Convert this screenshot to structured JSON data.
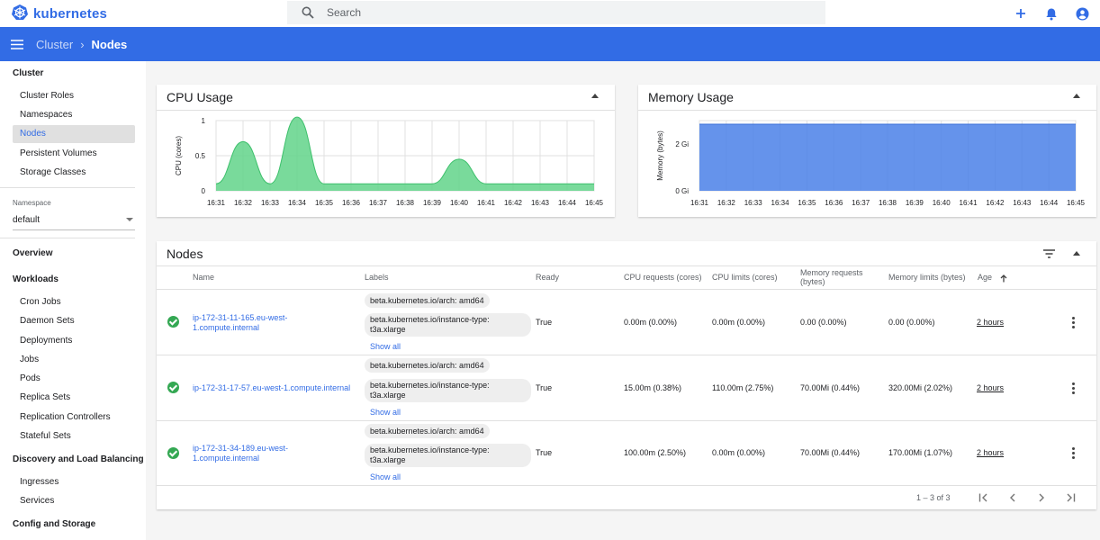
{
  "app": {
    "logo_text": "kubernetes"
  },
  "search": {
    "placeholder": "Search"
  },
  "breadcrumb": {
    "parent": "Cluster",
    "current": "Nodes"
  },
  "sidebar": {
    "cluster_heading": "Cluster",
    "cluster_items": [
      "Cluster Roles",
      "Namespaces",
      "Nodes",
      "Persistent Volumes",
      "Storage Classes"
    ],
    "namespace_label": "Namespace",
    "namespace_value": "default",
    "overview": "Overview",
    "workloads_heading": "Workloads",
    "workload_items": [
      "Cron Jobs",
      "Daemon Sets",
      "Deployments",
      "Jobs",
      "Pods",
      "Replica Sets",
      "Replication Controllers",
      "Stateful Sets"
    ],
    "discovery_heading": "Discovery and Load Balancing",
    "discovery_items": [
      "Ingresses",
      "Services"
    ],
    "config_heading": "Config and Storage"
  },
  "cpu_card": {
    "title": "CPU Usage"
  },
  "memory_card": {
    "title": "Memory Usage"
  },
  "chart_data": [
    {
      "type": "area",
      "title": "CPU Usage",
      "ylabel": "CPU (cores)",
      "ylim": [
        0,
        1
      ],
      "yticks": [
        "0",
        "0.5",
        "1"
      ],
      "x": [
        "16:31",
        "16:32",
        "16:33",
        "16:34",
        "16:35",
        "16:36",
        "16:37",
        "16:38",
        "16:39",
        "16:40",
        "16:41",
        "16:42",
        "16:43",
        "16:44",
        "16:45"
      ],
      "values": [
        0.1,
        0.7,
        0.1,
        1.05,
        0.1,
        0.1,
        0.1,
        0.1,
        0.1,
        0.45,
        0.1,
        0.1,
        0.1,
        0.1,
        0.1
      ],
      "color": "#62d48a"
    },
    {
      "type": "area",
      "title": "Memory Usage",
      "ylabel": "Memory (bytes)",
      "ylim": [
        0,
        3
      ],
      "yticks": [
        "0 Gi",
        "2 Gi"
      ],
      "x": [
        "16:31",
        "16:32",
        "16:33",
        "16:34",
        "16:35",
        "16:36",
        "16:37",
        "16:38",
        "16:39",
        "16:40",
        "16:41",
        "16:42",
        "16:43",
        "16:44",
        "16:45"
      ],
      "values": [
        3.05,
        3.05,
        3.05,
        3.07,
        3.06,
        3.06,
        3.06,
        3.06,
        3.06,
        3.06,
        3.06,
        3.06,
        3.06,
        3.06,
        3.07
      ],
      "color": "#4a80e8"
    }
  ],
  "nodes_card": {
    "title": "Nodes",
    "columns": [
      "Name",
      "Labels",
      "Ready",
      "CPU requests (cores)",
      "CPU limits (cores)",
      "Memory requests (bytes)",
      "Memory limits (bytes)",
      "Age"
    ],
    "show_all_label": "Show all",
    "rows": [
      {
        "name": "ip-172-31-11-165.eu-west-1.compute.internal",
        "label_arch": "beta.kubernetes.io/arch: amd64",
        "label_instance": "beta.kubernetes.io/instance-type: t3a.xlarge",
        "ready": "True",
        "cpu_requests": "0.00m (0.00%)",
        "cpu_limits": "0.00m (0.00%)",
        "mem_requests": "0.00 (0.00%)",
        "mem_limits": "0.00 (0.00%)",
        "age": "2 hours"
      },
      {
        "name": "ip-172-31-17-57.eu-west-1.compute.internal",
        "label_arch": "beta.kubernetes.io/arch: amd64",
        "label_instance": "beta.kubernetes.io/instance-type: t3a.xlarge",
        "ready": "True",
        "cpu_requests": "15.00m (0.38%)",
        "cpu_limits": "110.00m (2.75%)",
        "mem_requests": "70.00Mi (0.44%)",
        "mem_limits": "320.00Mi (2.02%)",
        "age": "2 hours"
      },
      {
        "name": "ip-172-31-34-189.eu-west-1.compute.internal",
        "label_arch": "beta.kubernetes.io/arch: amd64",
        "label_instance": "beta.kubernetes.io/instance-type: t3a.xlarge",
        "ready": "True",
        "cpu_requests": "100.00m (2.50%)",
        "cpu_limits": "0.00m (0.00%)",
        "mem_requests": "70.00Mi (0.44%)",
        "mem_limits": "170.00Mi (1.07%)",
        "age": "2 hours"
      }
    ],
    "pagination": "1 – 3 of 3"
  }
}
